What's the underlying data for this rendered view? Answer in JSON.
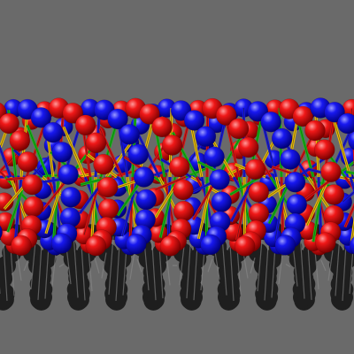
{
  "scene": {
    "subject": "dna-double-helix",
    "background_color": "#6a6a6a",
    "shadow_color": "#1e1e1e",
    "strand_colors": [
      "#e01010",
      "#1414e0"
    ],
    "base_colors": [
      "#e01010",
      "#1414e0",
      "#10c010",
      "#f0c000"
    ],
    "rung_color": "#202020"
  }
}
